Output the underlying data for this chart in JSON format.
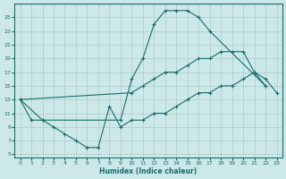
{
  "xlabel": "Humidex (Indice chaleur)",
  "bg_color": "#cce8e8",
  "grid_color": "#aacccc",
  "line_color": "#1a6b6b",
  "xlim": [
    -0.5,
    23.5
  ],
  "ylim": [
    4.5,
    27
  ],
  "xticks": [
    0,
    1,
    2,
    3,
    4,
    5,
    6,
    7,
    8,
    9,
    10,
    11,
    12,
    13,
    14,
    15,
    16,
    17,
    18,
    19,
    20,
    21,
    22,
    23
  ],
  "yticks": [
    5,
    7,
    9,
    11,
    13,
    15,
    17,
    19,
    21,
    23,
    25
  ],
  "line1_x": [
    0,
    1,
    2,
    9,
    10,
    11,
    12,
    13,
    14,
    15,
    16,
    17,
    22
  ],
  "line1_y": [
    13,
    10,
    10,
    10,
    16,
    19,
    24,
    26,
    26,
    26,
    25,
    23,
    15
  ],
  "line2_x": [
    0,
    10,
    11,
    12,
    13,
    14,
    15,
    16,
    17,
    18,
    19,
    20,
    21,
    22
  ],
  "line2_y": [
    13,
    14,
    15,
    16,
    17,
    17,
    18,
    19,
    19,
    20,
    20,
    20,
    17,
    15
  ],
  "line3_x": [
    0,
    2,
    3,
    4,
    5,
    6,
    7,
    8,
    9,
    10,
    11,
    12,
    13,
    14,
    15,
    16,
    17,
    18,
    19,
    20,
    21,
    22,
    23
  ],
  "line3_y": [
    13,
    10,
    9,
    8,
    7,
    6,
    6,
    12,
    9,
    10,
    10,
    11,
    11,
    12,
    13,
    14,
    14,
    15,
    15,
    16,
    17,
    16,
    14
  ]
}
